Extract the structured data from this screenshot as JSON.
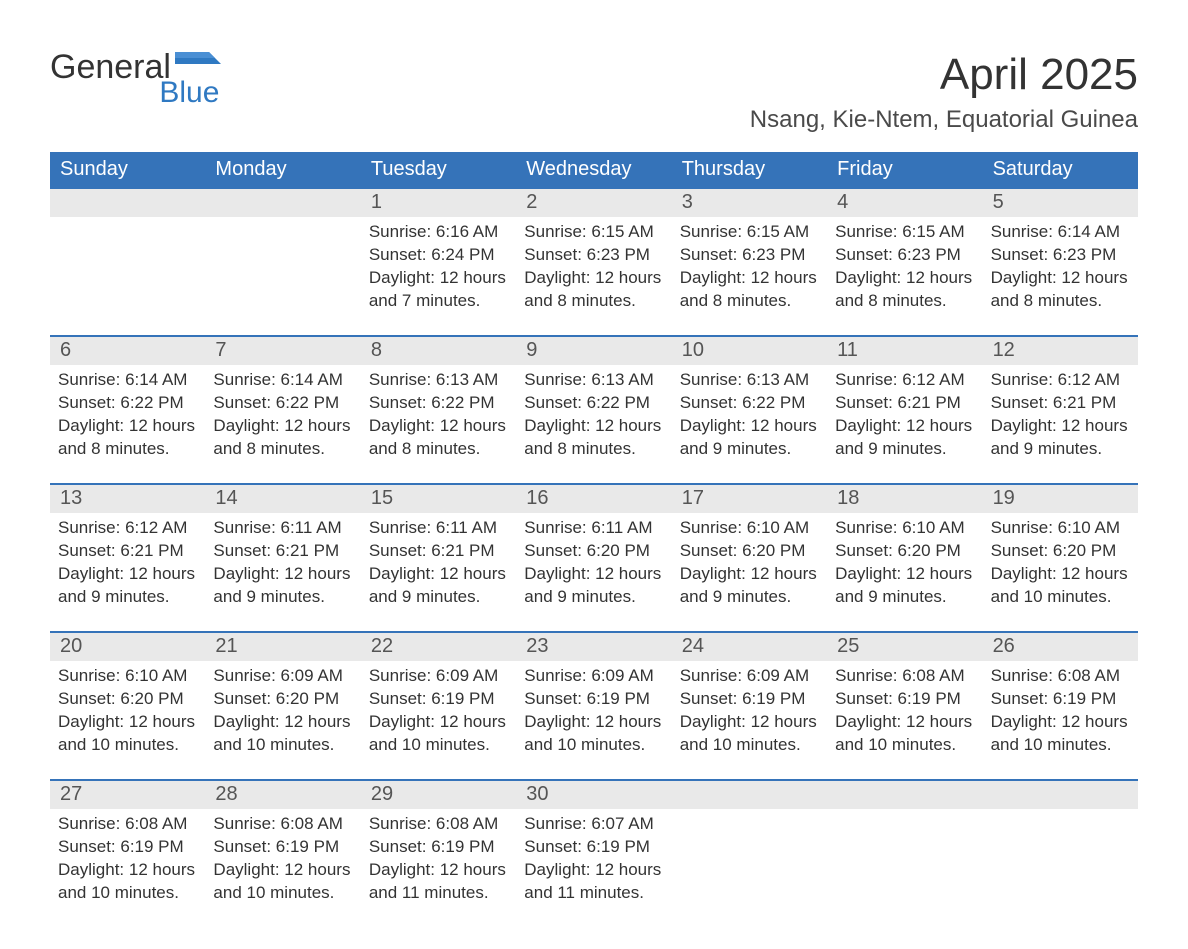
{
  "brand": {
    "word1": "General",
    "word2": "Blue",
    "text_color": "#333333",
    "accent_color": "#2f79c2"
  },
  "title": "April 2025",
  "location": "Nsang, Kie-Ntem, Equatorial Guinea",
  "colors": {
    "header_bg": "#3573b9",
    "header_text": "#ffffff",
    "daynum_bg": "#e9e9e9",
    "week_divider": "#3573b9",
    "body_text": "#333333",
    "page_bg": "#ffffff"
  },
  "typography": {
    "title_fontsize": 44,
    "location_fontsize": 24,
    "dow_fontsize": 20,
    "daynum_fontsize": 20,
    "body_fontsize": 17
  },
  "days_of_week": [
    "Sunday",
    "Monday",
    "Tuesday",
    "Wednesday",
    "Thursday",
    "Friday",
    "Saturday"
  ],
  "weeks": [
    [
      {
        "n": "",
        "sunrise": "",
        "sunset": "",
        "daylight": ""
      },
      {
        "n": "",
        "sunrise": "",
        "sunset": "",
        "daylight": ""
      },
      {
        "n": "1",
        "sunrise": "Sunrise: 6:16 AM",
        "sunset": "Sunset: 6:24 PM",
        "daylight": "Daylight: 12 hours and 7 minutes."
      },
      {
        "n": "2",
        "sunrise": "Sunrise: 6:15 AM",
        "sunset": "Sunset: 6:23 PM",
        "daylight": "Daylight: 12 hours and 8 minutes."
      },
      {
        "n": "3",
        "sunrise": "Sunrise: 6:15 AM",
        "sunset": "Sunset: 6:23 PM",
        "daylight": "Daylight: 12 hours and 8 minutes."
      },
      {
        "n": "4",
        "sunrise": "Sunrise: 6:15 AM",
        "sunset": "Sunset: 6:23 PM",
        "daylight": "Daylight: 12 hours and 8 minutes."
      },
      {
        "n": "5",
        "sunrise": "Sunrise: 6:14 AM",
        "sunset": "Sunset: 6:23 PM",
        "daylight": "Daylight: 12 hours and 8 minutes."
      }
    ],
    [
      {
        "n": "6",
        "sunrise": "Sunrise: 6:14 AM",
        "sunset": "Sunset: 6:22 PM",
        "daylight": "Daylight: 12 hours and 8 minutes."
      },
      {
        "n": "7",
        "sunrise": "Sunrise: 6:14 AM",
        "sunset": "Sunset: 6:22 PM",
        "daylight": "Daylight: 12 hours and 8 minutes."
      },
      {
        "n": "8",
        "sunrise": "Sunrise: 6:13 AM",
        "sunset": "Sunset: 6:22 PM",
        "daylight": "Daylight: 12 hours and 8 minutes."
      },
      {
        "n": "9",
        "sunrise": "Sunrise: 6:13 AM",
        "sunset": "Sunset: 6:22 PM",
        "daylight": "Daylight: 12 hours and 8 minutes."
      },
      {
        "n": "10",
        "sunrise": "Sunrise: 6:13 AM",
        "sunset": "Sunset: 6:22 PM",
        "daylight": "Daylight: 12 hours and 9 minutes."
      },
      {
        "n": "11",
        "sunrise": "Sunrise: 6:12 AM",
        "sunset": "Sunset: 6:21 PM",
        "daylight": "Daylight: 12 hours and 9 minutes."
      },
      {
        "n": "12",
        "sunrise": "Sunrise: 6:12 AM",
        "sunset": "Sunset: 6:21 PM",
        "daylight": "Daylight: 12 hours and 9 minutes."
      }
    ],
    [
      {
        "n": "13",
        "sunrise": "Sunrise: 6:12 AM",
        "sunset": "Sunset: 6:21 PM",
        "daylight": "Daylight: 12 hours and 9 minutes."
      },
      {
        "n": "14",
        "sunrise": "Sunrise: 6:11 AM",
        "sunset": "Sunset: 6:21 PM",
        "daylight": "Daylight: 12 hours and 9 minutes."
      },
      {
        "n": "15",
        "sunrise": "Sunrise: 6:11 AM",
        "sunset": "Sunset: 6:21 PM",
        "daylight": "Daylight: 12 hours and 9 minutes."
      },
      {
        "n": "16",
        "sunrise": "Sunrise: 6:11 AM",
        "sunset": "Sunset: 6:20 PM",
        "daylight": "Daylight: 12 hours and 9 minutes."
      },
      {
        "n": "17",
        "sunrise": "Sunrise: 6:10 AM",
        "sunset": "Sunset: 6:20 PM",
        "daylight": "Daylight: 12 hours and 9 minutes."
      },
      {
        "n": "18",
        "sunrise": "Sunrise: 6:10 AM",
        "sunset": "Sunset: 6:20 PM",
        "daylight": "Daylight: 12 hours and 9 minutes."
      },
      {
        "n": "19",
        "sunrise": "Sunrise: 6:10 AM",
        "sunset": "Sunset: 6:20 PM",
        "daylight": "Daylight: 12 hours and 10 minutes."
      }
    ],
    [
      {
        "n": "20",
        "sunrise": "Sunrise: 6:10 AM",
        "sunset": "Sunset: 6:20 PM",
        "daylight": "Daylight: 12 hours and 10 minutes."
      },
      {
        "n": "21",
        "sunrise": "Sunrise: 6:09 AM",
        "sunset": "Sunset: 6:20 PM",
        "daylight": "Daylight: 12 hours and 10 minutes."
      },
      {
        "n": "22",
        "sunrise": "Sunrise: 6:09 AM",
        "sunset": "Sunset: 6:19 PM",
        "daylight": "Daylight: 12 hours and 10 minutes."
      },
      {
        "n": "23",
        "sunrise": "Sunrise: 6:09 AM",
        "sunset": "Sunset: 6:19 PM",
        "daylight": "Daylight: 12 hours and 10 minutes."
      },
      {
        "n": "24",
        "sunrise": "Sunrise: 6:09 AM",
        "sunset": "Sunset: 6:19 PM",
        "daylight": "Daylight: 12 hours and 10 minutes."
      },
      {
        "n": "25",
        "sunrise": "Sunrise: 6:08 AM",
        "sunset": "Sunset: 6:19 PM",
        "daylight": "Daylight: 12 hours and 10 minutes."
      },
      {
        "n": "26",
        "sunrise": "Sunrise: 6:08 AM",
        "sunset": "Sunset: 6:19 PM",
        "daylight": "Daylight: 12 hours and 10 minutes."
      }
    ],
    [
      {
        "n": "27",
        "sunrise": "Sunrise: 6:08 AM",
        "sunset": "Sunset: 6:19 PM",
        "daylight": "Daylight: 12 hours and 10 minutes."
      },
      {
        "n": "28",
        "sunrise": "Sunrise: 6:08 AM",
        "sunset": "Sunset: 6:19 PM",
        "daylight": "Daylight: 12 hours and 10 minutes."
      },
      {
        "n": "29",
        "sunrise": "Sunrise: 6:08 AM",
        "sunset": "Sunset: 6:19 PM",
        "daylight": "Daylight: 12 hours and 11 minutes."
      },
      {
        "n": "30",
        "sunrise": "Sunrise: 6:07 AM",
        "sunset": "Sunset: 6:19 PM",
        "daylight": "Daylight: 12 hours and 11 minutes."
      },
      {
        "n": "",
        "sunrise": "",
        "sunset": "",
        "daylight": ""
      },
      {
        "n": "",
        "sunrise": "",
        "sunset": "",
        "daylight": ""
      },
      {
        "n": "",
        "sunrise": "",
        "sunset": "",
        "daylight": ""
      }
    ]
  ]
}
